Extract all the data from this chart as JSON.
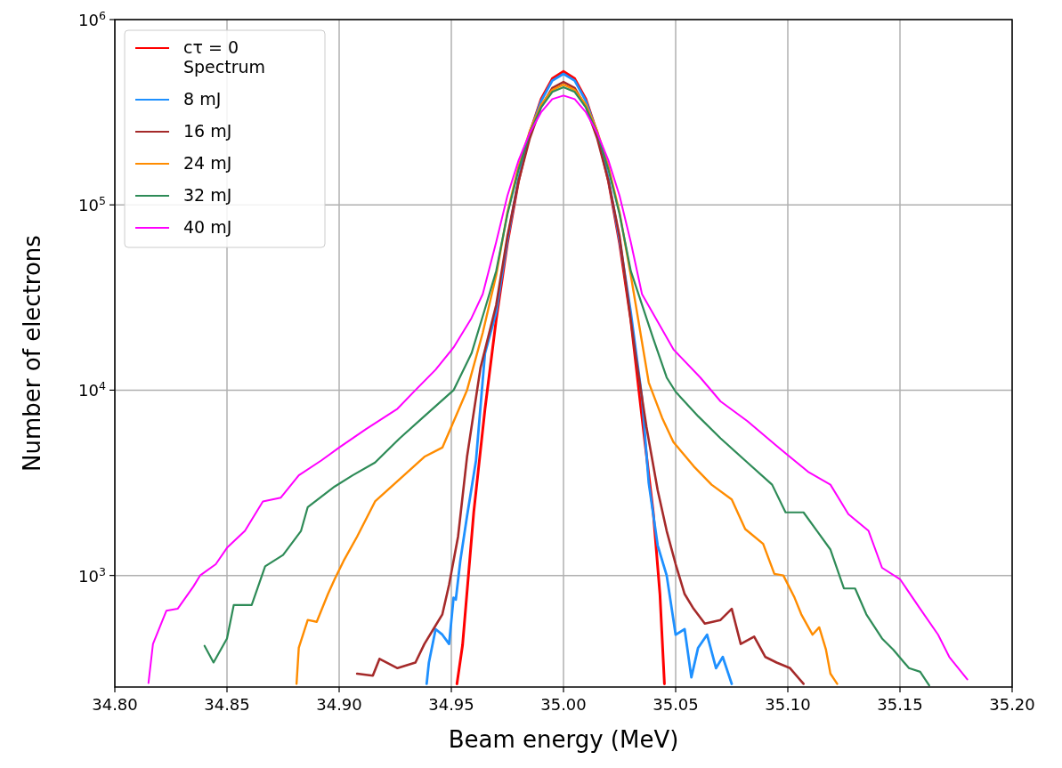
{
  "chart_data": {
    "type": "line",
    "xlabel": "Beam energy (MeV)",
    "ylabel": "Number of electrons",
    "log": "y",
    "grid": true,
    "legend": "top left",
    "marker": "none",
    "line_style": "solid",
    "xlim": [
      34.8,
      35.2
    ],
    "ylim": [
      250,
      1000000
    ],
    "xticks": [
      {
        "value": 34.8,
        "label": "34.80"
      },
      {
        "value": 34.85,
        "label": "34.85"
      },
      {
        "value": 34.9,
        "label": "34.90"
      },
      {
        "value": 34.95,
        "label": "34.95"
      },
      {
        "value": 35.0,
        "label": "35.00"
      },
      {
        "value": 35.05,
        "label": "35.05"
      },
      {
        "value": 35.1,
        "label": "35.10"
      },
      {
        "value": 35.15,
        "label": "35.15"
      },
      {
        "value": 35.2,
        "label": "35.20"
      }
    ],
    "yticks": [
      {
        "value": 1000,
        "label": "10$^{3}$"
      },
      {
        "value": 10000,
        "label": "10$^{4}$"
      },
      {
        "value": 100000,
        "label": "10$^{5}$"
      },
      {
        "value": 1000000,
        "label": "10$^{6}$"
      }
    ],
    "series": [
      {
        "name": "cτ = 0\nSpectrum",
        "color": "#ff0000",
        "x": [
          34.9525,
          34.955,
          34.96,
          34.965,
          34.97,
          34.975,
          34.98,
          34.985,
          34.99,
          34.995,
          35.0,
          35.005,
          35.01,
          35.015,
          35.02,
          35.025,
          35.03,
          35.035,
          35.04,
          35.043,
          35.045
        ],
        "values": [
          260,
          420,
          2200,
          7900,
          24000,
          62000,
          135000,
          245000,
          372000,
          480000,
          525000,
          480000,
          372000,
          245000,
          135000,
          62000,
          24000,
          7100,
          2200,
          790,
          260
        ]
      },
      {
        "name": "8 mJ",
        "color": "#1e90ff",
        "x": [
          34.939,
          34.94,
          34.943,
          34.946,
          34.949,
          34.951,
          34.952,
          34.954,
          34.957,
          34.961,
          34.965,
          34.97,
          34.975,
          34.98,
          34.985,
          34.99,
          34.995,
          35.0,
          35.005,
          35.01,
          35.015,
          35.02,
          35.025,
          35.03,
          35.035,
          35.038,
          35.042,
          35.046,
          35.05,
          35.054,
          35.057,
          35.06,
          35.064,
          35.068,
          35.071,
          35.075
        ],
        "values": [
          260,
          339,
          513,
          479,
          427,
          759,
          741,
          1200,
          2090,
          4170,
          15800,
          26300,
          64600,
          138000,
          245000,
          363000,
          468000,
          509000,
          468000,
          363000,
          245000,
          138000,
          64600,
          26300,
          9100,
          3160,
          1450,
          1000,
          479,
          513,
          282,
          407,
          479,
          316,
          363,
          260
        ]
      },
      {
        "name": "16 mJ",
        "color": "#a52a2a",
        "x": [
          34.908,
          34.915,
          34.918,
          34.926,
          34.934,
          34.938,
          34.942,
          34.946,
          34.949,
          34.953,
          34.957,
          34.963,
          34.97,
          34.975,
          34.98,
          34.985,
          34.99,
          34.995,
          35.0,
          35.005,
          35.01,
          35.015,
          35.02,
          35.025,
          35.032,
          35.037,
          35.042,
          35.046,
          35.05,
          35.054,
          35.058,
          35.063,
          35.07,
          35.075,
          35.079,
          35.085,
          35.09,
          35.095,
          35.101,
          35.107
        ],
        "values": [
          295,
          288,
          355,
          316,
          339,
          427,
          513,
          617,
          891,
          1620,
          4370,
          13200,
          28800,
          67600,
          135000,
          229000,
          339000,
          427000,
          461000,
          427000,
          339000,
          229000,
          135000,
          67600,
          15800,
          6310,
          2880,
          1740,
          1150,
          794,
          661,
          550,
          575,
          661,
          427,
          468,
          363,
          339,
          316,
          260
        ]
      },
      {
        "name": "24 mJ",
        "color": "#ff8c00",
        "x": [
          34.881,
          34.882,
          34.886,
          34.89,
          34.895,
          34.898,
          34.902,
          34.908,
          34.916,
          34.927,
          34.938,
          34.946,
          34.951,
          34.957,
          34.964,
          34.97,
          34.975,
          34.98,
          34.985,
          34.99,
          34.995,
          35.0,
          35.005,
          35.01,
          35.015,
          35.02,
          35.025,
          35.03,
          35.038,
          35.044,
          35.049,
          35.058,
          35.066,
          35.075,
          35.081,
          35.089,
          35.094,
          35.098,
          35.103,
          35.106,
          35.111,
          35.114,
          35.117,
          35.119,
          35.122
        ],
        "values": [
          260,
          407,
          575,
          562,
          794,
          955,
          1200,
          1620,
          2510,
          3310,
          4370,
          4900,
          6760,
          10000,
          20400,
          41700,
          91000,
          162000,
          251000,
          347000,
          417000,
          446000,
          417000,
          347000,
          251000,
          162000,
          91000,
          41700,
          11000,
          7080,
          5250,
          3890,
          3090,
          2570,
          1780,
          1480,
          1020,
          1000,
          759,
          617,
          479,
          525,
          398,
          295,
          260
        ]
      },
      {
        "name": "32 mJ",
        "color": "#2e8b57",
        "x": [
          34.84,
          34.844,
          34.85,
          34.853,
          34.861,
          34.867,
          34.875,
          34.883,
          34.886,
          34.898,
          34.906,
          34.916,
          34.927,
          34.938,
          34.951,
          34.959,
          34.965,
          34.97,
          34.975,
          34.98,
          34.985,
          34.99,
          34.995,
          35.0,
          35.005,
          35.01,
          35.015,
          35.02,
          35.025,
          35.03,
          35.04,
          35.046,
          35.05,
          35.06,
          35.07,
          35.081,
          35.093,
          35.099,
          35.107,
          35.113,
          35.119,
          35.125,
          35.13,
          35.135,
          35.142,
          35.147,
          35.154,
          35.159,
          35.163
        ],
        "values": [
          417,
          339,
          457,
          692,
          692,
          1120,
          1290,
          1740,
          2340,
          3020,
          3470,
          4070,
          5500,
          7240,
          10000,
          15800,
          27500,
          44000,
          89000,
          155000,
          245000,
          335000,
          407000,
          431000,
          407000,
          335000,
          245000,
          155000,
          89000,
          44000,
          19000,
          11700,
          9800,
          7240,
          5500,
          4170,
          3090,
          2190,
          2190,
          1740,
          1380,
          851,
          851,
          617,
          457,
          398,
          316,
          302,
          255
        ]
      },
      {
        "name": "40 mJ",
        "color": "#ff00ff",
        "x": [
          34.815,
          34.817,
          34.823,
          34.828,
          34.835,
          34.838,
          34.845,
          34.85,
          34.858,
          34.866,
          34.874,
          34.882,
          34.892,
          34.9,
          34.912,
          34.926,
          34.934,
          34.943,
          34.951,
          34.959,
          34.964,
          34.97,
          34.975,
          34.98,
          34.985,
          34.99,
          34.995,
          35.0,
          35.005,
          35.01,
          35.015,
          35.02,
          35.025,
          35.03,
          35.035,
          35.049,
          35.061,
          35.07,
          35.082,
          35.095,
          35.109,
          35.119,
          35.127,
          35.136,
          35.142,
          35.15,
          35.159,
          35.167,
          35.172,
          35.18
        ],
        "values": [
          263,
          427,
          646,
          661,
          871,
          1000,
          1150,
          1410,
          1740,
          2510,
          2630,
          3470,
          4170,
          4900,
          6170,
          7940,
          10000,
          12900,
          17000,
          24500,
          33000,
          63000,
          112000,
          174000,
          245000,
          316000,
          372000,
          389000,
          372000,
          316000,
          245000,
          174000,
          112000,
          63000,
          33000,
          16600,
          11700,
          8700,
          6800,
          5000,
          3630,
          3090,
          2140,
          1740,
          1100,
          955,
          661,
          479,
          363,
          275
        ]
      }
    ]
  }
}
